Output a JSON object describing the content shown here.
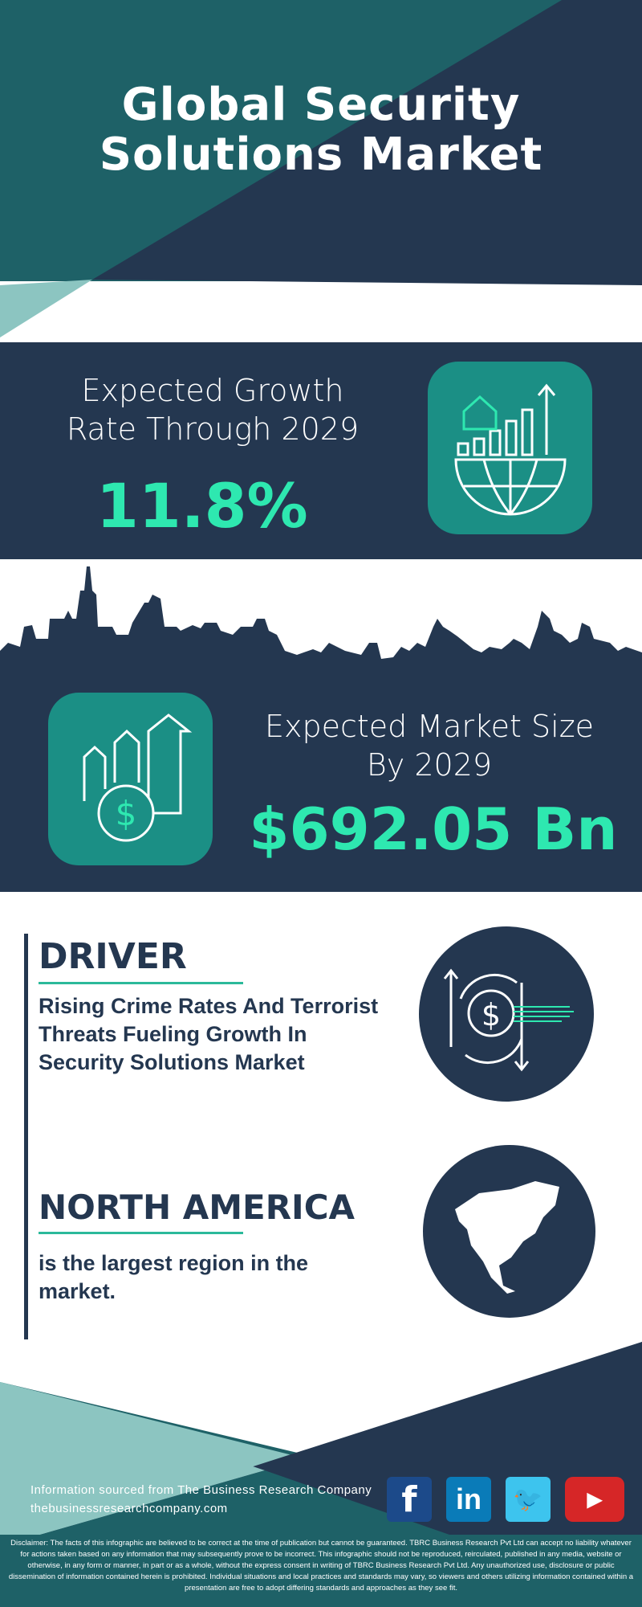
{
  "header": {
    "title_line1": "Global Security",
    "title_line2": "Solutions Market"
  },
  "growth": {
    "label_line1": "Expected Growth",
    "label_line2": "Rate Through 2029",
    "value": "11.8%",
    "icon": "globe-growth-chart-icon"
  },
  "market_size": {
    "label_line1": "Expected Market Size",
    "label_line2": "By 2029",
    "value": "$692.05 Bn",
    "icon": "dollar-growth-arrows-icon"
  },
  "driver": {
    "heading": "DRIVER",
    "text": "Rising Crime Rates And Terrorist Threats Fueling Growth In Security Solutions Market",
    "icon": "dollar-exchange-icon"
  },
  "region": {
    "heading": "NORTH AMERICA",
    "text": "is the largest region in the market.",
    "icon": "north-america-map-icon"
  },
  "footer": {
    "source": "Information sourced from The Business Research Company",
    "website": "thebusinessresearchcompany.com",
    "social": [
      {
        "name": "facebook",
        "glyph": "f",
        "color": "#1c4a8a"
      },
      {
        "name": "linkedin",
        "glyph": "in",
        "color": "#0a7bb8"
      },
      {
        "name": "twitter",
        "glyph": "🐦",
        "color": "#3dc4ee"
      },
      {
        "name": "youtube",
        "glyph": "▶",
        "color": "#d62627"
      }
    ],
    "disclaimer": "Disclaimer: The facts of this infographic are believed to be correct at the time of publication but cannot be guaranteed. TBRC Business Research Pvt Ltd can accept no liability whatever for actions taken based on any information that may subsequently prove to be incorrect. This infographic should not be reproduced, reirculated, published in any media, website or otherwise, in any form or manner, in part or as a whole, without the express consent in writing of TBRC Business Research Pvt Ltd. Any unauthorized use, disclosure or public dissemination of information contained herein is prohibited. Individual situations and local practices and standards may vary, so viewers and others utilizing information contained within a presentation are free to adopt differing standards and approaches as they see fit."
  },
  "colors": {
    "navy": "#243750",
    "teal": "#1e6167",
    "light_teal": "#8cc5c1",
    "accent": "#2ee8b0",
    "icon_bg": "#1b8f85"
  }
}
